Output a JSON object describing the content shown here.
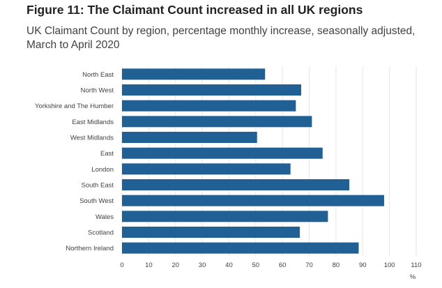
{
  "header": {
    "title": "Figure 11: The Claimant Count increased in all UK regions",
    "subtitle": "UK Claimant Count by region, percentage monthly increase, seasonally adjusted, March to April 2020"
  },
  "chart_data": {
    "type": "bar",
    "orientation": "horizontal",
    "categories": [
      "North East",
      "North West",
      "Yorkshire and The Humber",
      "East Midlands",
      "West Midlands",
      "East",
      "London",
      "South East",
      "South West",
      "Wales",
      "Scotland",
      "Northern Ireland"
    ],
    "values": [
      53.5,
      67,
      65,
      71,
      50.5,
      75,
      63,
      85,
      98,
      77,
      66.5,
      88.5
    ],
    "xlabel": "%",
    "ylabel": "",
    "xlim": [
      0,
      110
    ],
    "xticks": [
      "0",
      "10",
      "20",
      "30",
      "40",
      "50",
      "60",
      "70",
      "80",
      "90",
      "100",
      "110"
    ],
    "grid": true,
    "bar_color": "#206095",
    "grid_color": "#e6e6e6"
  }
}
